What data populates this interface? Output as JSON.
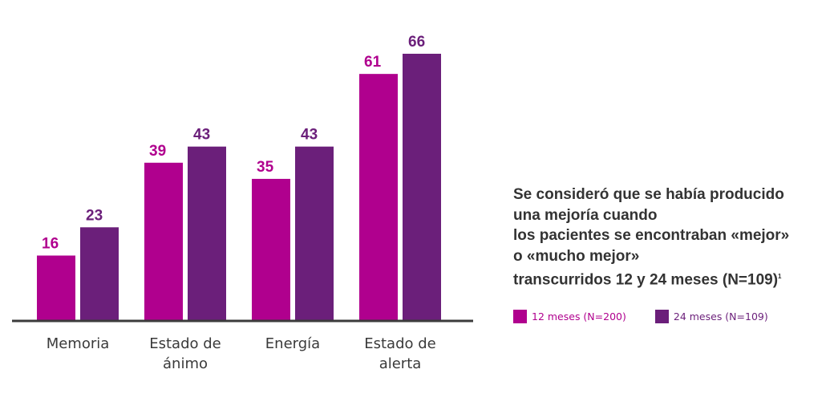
{
  "chart_data": {
    "type": "bar",
    "title": "",
    "xlabel": "",
    "ylabel": "",
    "ylim": [
      0,
      66
    ],
    "grid": false,
    "legend_position": "right",
    "categories": [
      [
        "Memoria"
      ],
      [
        "Estado de",
        "ánimo"
      ],
      [
        "Energía"
      ],
      [
        "Estado de",
        "alerta"
      ]
    ],
    "series": [
      {
        "name": "12 meses (N=200)",
        "color": "#b0008e",
        "values": [
          16,
          39,
          35,
          61
        ]
      },
      {
        "name": "24 meses (N=109)",
        "color": "#6b1f7a",
        "values": [
          23,
          43,
          43,
          66
        ]
      }
    ]
  },
  "note": {
    "lines": [
      "Se consideró que se había producido",
      "una mejoría cuando",
      "los pacientes se encontraban «mejor»",
      "o «mucho mejor»",
      "transcurridos 12 y 24 meses (N=109)"
    ],
    "footnote_mark": "1"
  },
  "legend": [
    {
      "label": "12 meses (N=200)",
      "color": "#b0008e"
    },
    {
      "label": "24 meses (N=109)",
      "color": "#6b1f7a"
    }
  ]
}
